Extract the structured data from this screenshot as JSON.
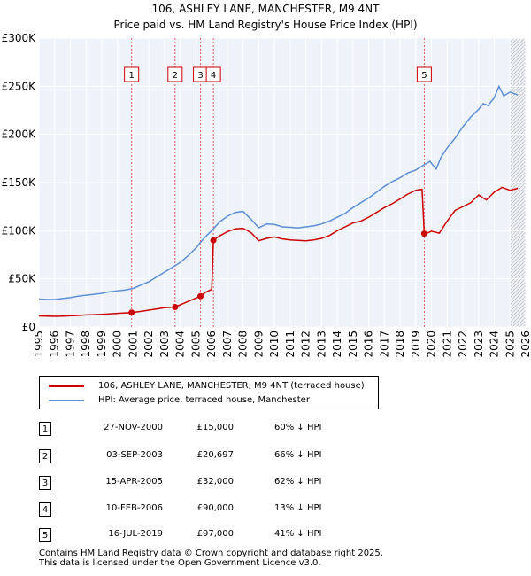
{
  "chart_data": {
    "type": "line",
    "title": "106, ASHLEY LANE, MANCHESTER, M9 4NT",
    "subtitle": "Price paid vs. HM Land Registry's House Price Index (HPI)",
    "xlabel": "",
    "ylabel": "",
    "xlim": [
      1995,
      2026
    ],
    "ylim": [
      0,
      300000
    ],
    "x_ticks": [
      "1995",
      "1996",
      "1997",
      "1998",
      "1999",
      "2000",
      "2001",
      "2002",
      "2003",
      "2004",
      "2005",
      "2006",
      "2007",
      "2008",
      "2009",
      "2010",
      "2011",
      "2012",
      "2013",
      "2014",
      "2015",
      "2016",
      "2017",
      "2018",
      "2019",
      "2020",
      "2021",
      "2022",
      "2023",
      "2024",
      "2025",
      "2026"
    ],
    "y_ticks": [
      {
        "value": 0,
        "label": "£0"
      },
      {
        "value": 50000,
        "label": "£50K"
      },
      {
        "value": 100000,
        "label": "£100K"
      },
      {
        "value": 150000,
        "label": "£150K"
      },
      {
        "value": 200000,
        "label": "£200K"
      },
      {
        "value": 250000,
        "label": "£250K"
      },
      {
        "value": 300000,
        "label": "£300K"
      }
    ],
    "grid": true,
    "series": [
      {
        "name": "106, ASHLEY LANE, MANCHESTER, M9 4NT (terraced house)",
        "color": "#cc0000",
        "x": [
          1995.0,
          1995.5,
          1996.0,
          1996.5,
          1997.0,
          1997.5,
          1998.0,
          1998.5,
          1999.0,
          1999.5,
          2000.0,
          2000.5,
          2000.9,
          2001.5,
          2002.0,
          2002.5,
          2003.0,
          2003.67,
          2004.0,
          2004.5,
          2005.0,
          2005.29,
          2005.6,
          2006.0,
          2006.11,
          2006.5,
          2007.0,
          2007.5,
          2008.0,
          2008.5,
          2009.0,
          2009.5,
          2010.0,
          2010.5,
          2011.0,
          2011.5,
          2012.0,
          2012.5,
          2013.0,
          2013.5,
          2014.0,
          2014.5,
          2015.0,
          2015.5,
          2016.0,
          2016.5,
          2017.0,
          2017.5,
          2018.0,
          2018.5,
          2019.0,
          2019.4,
          2019.54,
          2019.8,
          2020.0,
          2020.5,
          2021.0,
          2021.5,
          2022.0,
          2022.5,
          2023.0,
          2023.5,
          2024.0,
          2024.5,
          2025.0,
          2025.5
        ],
        "values": [
          11500,
          11200,
          11000,
          11300,
          11600,
          12000,
          12500,
          12800,
          13200,
          13600,
          14200,
          14600,
          15000,
          16200,
          17500,
          18800,
          20000,
          20697,
          23000,
          26500,
          30000,
          32000,
          36000,
          39000,
          90000,
          94500,
          99000,
          102000,
          102500,
          98000,
          89500,
          92000,
          93500,
          91500,
          90500,
          90000,
          89500,
          90500,
          92000,
          95000,
          100000,
          104000,
          108000,
          110000,
          114000,
          119000,
          124000,
          128000,
          133000,
          138000,
          142000,
          143000,
          97000,
          98000,
          99500,
          97500,
          110000,
          121000,
          125000,
          129000,
          137000,
          132000,
          140000,
          145000,
          142000,
          144000
        ]
      },
      {
        "name": "HPI: Average price, terraced house, Manchester",
        "color": "#5b8fd6",
        "x": [
          1995.0,
          1995.5,
          1996.0,
          1996.5,
          1997.0,
          1997.5,
          1998.0,
          1998.5,
          1999.0,
          1999.5,
          2000.0,
          2000.5,
          2001.0,
          2001.5,
          2002.0,
          2002.5,
          2003.0,
          2003.5,
          2004.0,
          2004.5,
          2005.0,
          2005.5,
          2006.0,
          2006.5,
          2007.0,
          2007.5,
          2008.0,
          2008.5,
          2009.0,
          2009.5,
          2010.0,
          2010.5,
          2011.0,
          2011.5,
          2012.0,
          2012.5,
          2013.0,
          2013.5,
          2014.0,
          2014.5,
          2015.0,
          2015.5,
          2016.0,
          2016.5,
          2017.0,
          2017.5,
          2018.0,
          2018.5,
          2019.0,
          2019.5,
          2019.9,
          2020.3,
          2020.6,
          2021.0,
          2021.5,
          2022.0,
          2022.5,
          2023.0,
          2023.3,
          2023.6,
          2024.0,
          2024.3,
          2024.6,
          2025.0,
          2025.5
        ],
        "values": [
          29000,
          28500,
          28500,
          29500,
          30500,
          32000,
          33000,
          34000,
          35000,
          36500,
          37500,
          38500,
          40000,
          43500,
          47000,
          52000,
          57000,
          62000,
          67000,
          74000,
          82000,
          92000,
          100000,
          109000,
          115000,
          119000,
          120000,
          112000,
          103000,
          107000,
          106500,
          104000,
          103500,
          103000,
          104000,
          105000,
          107000,
          110000,
          114000,
          118000,
          124000,
          129000,
          134000,
          140000,
          146000,
          151000,
          155000,
          160000,
          163000,
          168000,
          172000,
          164000,
          176000,
          186000,
          196000,
          208000,
          218000,
          226000,
          232000,
          230000,
          238000,
          250000,
          240000,
          244000,
          241000
        ]
      }
    ],
    "markers": [
      {
        "id": "1",
        "x": 2000.9,
        "value": 15000
      },
      {
        "id": "2",
        "x": 2003.67,
        "value": 20697
      },
      {
        "id": "3",
        "x": 2005.29,
        "value": 32000
      },
      {
        "id": "4",
        "x": 2006.11,
        "value": 90000
      },
      {
        "id": "5",
        "x": 2019.54,
        "value": 97000
      }
    ],
    "hatch_from": 2025.0
  },
  "legend": {
    "red_label": "106, ASHLEY LANE, MANCHESTER, M9 4NT (terraced house)",
    "blue_label": "HPI: Average price, terraced house, Manchester"
  },
  "sales": [
    {
      "id": "1",
      "date": "27-NOV-2000",
      "price": "£15,000",
      "hpi": "60% ↓ HPI"
    },
    {
      "id": "2",
      "date": "03-SEP-2003",
      "price": "£20,697",
      "hpi": "66% ↓ HPI"
    },
    {
      "id": "3",
      "date": "15-APR-2005",
      "price": "£32,000",
      "hpi": "62% ↓ HPI"
    },
    {
      "id": "4",
      "date": "10-FEB-2006",
      "price": "£90,000",
      "hpi": "13% ↓ HPI"
    },
    {
      "id": "5",
      "date": "16-JUL-2019",
      "price": "£97,000",
      "hpi": "41% ↓ HPI"
    }
  ],
  "footer": {
    "line1": "Contains HM Land Registry data © Crown copyright and database right 2025.",
    "line2": "This data is licensed under the Open Government Licence v3.0."
  }
}
